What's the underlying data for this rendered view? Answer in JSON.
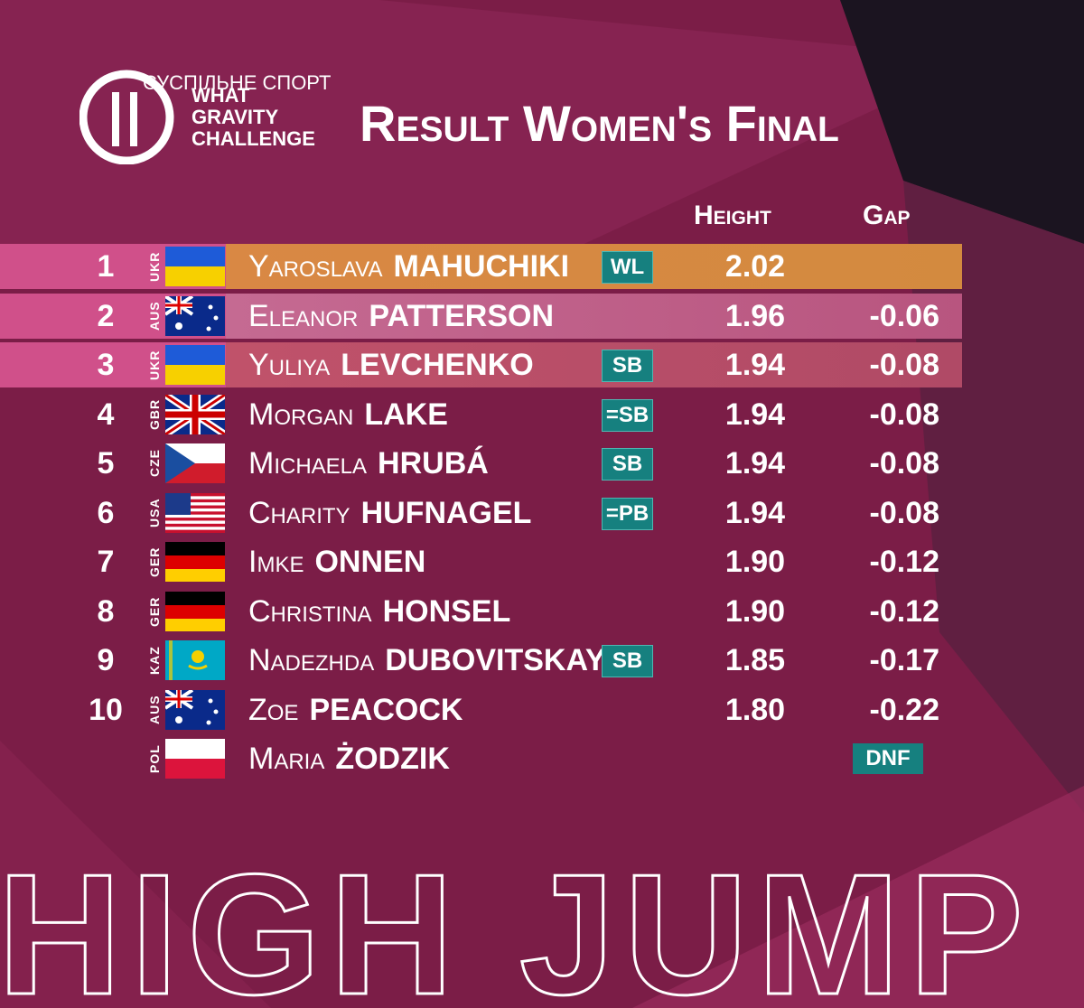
{
  "logo": {
    "broadcaster": "СУСПІЛЬНЕ СПОРТ",
    "event": [
      "WHAT",
      "GRAVITY",
      "CHALLENGE"
    ]
  },
  "header": {
    "title": "Result Women's Final",
    "columns": {
      "height": "Height",
      "gap": "Gap"
    }
  },
  "table": {
    "rows": [
      {
        "rank": 1,
        "country": "UKR",
        "first": "Yaroslava",
        "last": "MAHUCHIKI",
        "badge": "WL",
        "height": "2.02"
      },
      {
        "rank": 2,
        "country": "AUS",
        "first": "Eleanor",
        "last": "PATTERSON",
        "height": "1.96",
        "gap": "-0.06"
      },
      {
        "rank": 3,
        "country": "UKR",
        "first": "Yuliya",
        "last": "LEVCHENKO",
        "badge": "SB",
        "height": "1.94",
        "gap": "-0.08"
      },
      {
        "rank": 4,
        "country": "GBR",
        "first": "Morgan",
        "last": "LAKE",
        "badge": "=SB",
        "height": "1.94",
        "gap": "-0.08"
      },
      {
        "rank": 5,
        "country": "CZE",
        "first": "Michaela",
        "last": "HRUBÁ",
        "badge": "SB",
        "height": "1.94",
        "gap": "-0.08"
      },
      {
        "rank": 6,
        "country": "USA",
        "first": "Charity",
        "last": "HUFNAGEL",
        "badge": "=PB",
        "height": "1.94",
        "gap": "-0.08"
      },
      {
        "rank": 7,
        "country": "GER",
        "first": "Imke",
        "last": "ONNEN",
        "height": "1.90",
        "gap": "-0.12"
      },
      {
        "rank": 8,
        "country": "GER",
        "first": "Christina",
        "last": "HONSEL",
        "height": "1.90",
        "gap": "-0.12"
      },
      {
        "rank": 9,
        "country": "KAZ",
        "first": "Nadezhda",
        "last": "DUBOVITSKAYA",
        "badge": "SB",
        "height": "1.85",
        "gap": "-0.17"
      },
      {
        "rank": 10,
        "country": "AUS",
        "first": "Zoe",
        "last": "PEACOCK",
        "height": "1.80",
        "gap": "-0.22"
      },
      {
        "country": "POL",
        "first": "Maria",
        "last": "ŻODZIK",
        "status": "DNF"
      }
    ]
  },
  "footer": {
    "event": "HIGH JUMP"
  }
}
